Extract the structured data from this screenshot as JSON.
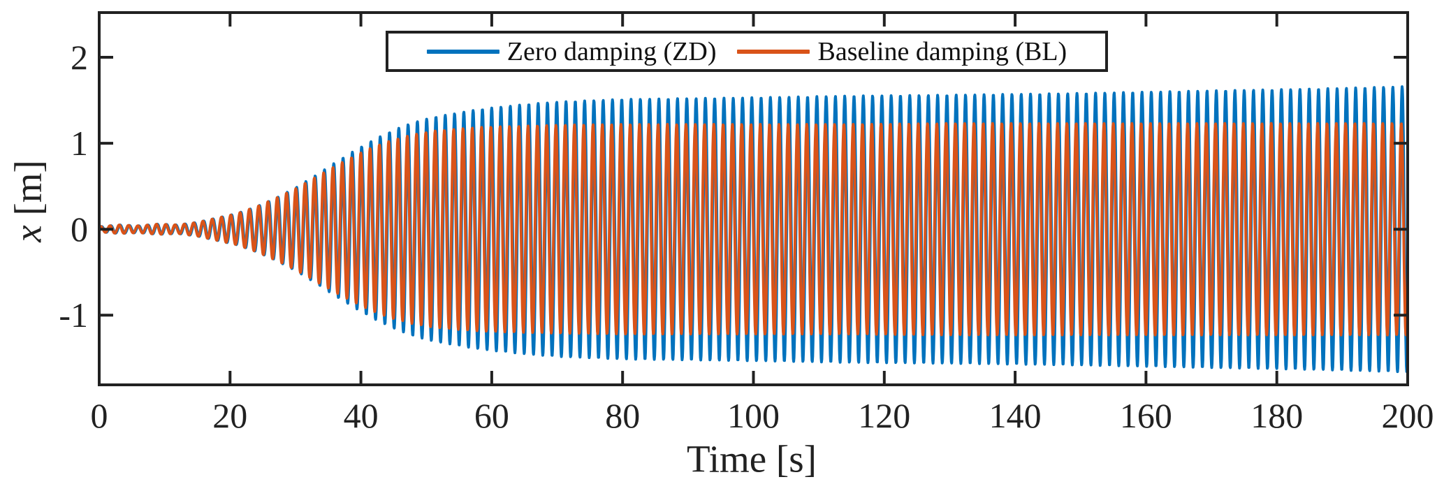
{
  "figure": {
    "background_color": "#ffffff",
    "axis_color": "#212121",
    "title": ""
  },
  "chart_data": {
    "type": "line",
    "title": "",
    "xlabel": "Time [s]",
    "ylabel": "x [m]",
    "ylabel_parts": {
      "var": "x",
      "unit": " [m]"
    },
    "xlim": [
      0,
      200
    ],
    "ylim": [
      -1.81,
      2.52
    ],
    "xticks": [
      0,
      20,
      40,
      60,
      80,
      100,
      120,
      140,
      160,
      180,
      200
    ],
    "yticks": [
      -1,
      0,
      1,
      2
    ],
    "grid": false,
    "box": true,
    "tick_direction": "in",
    "legend": {
      "position": "north-inside-top",
      "entries": [
        "Zero damping (ZD)",
        "Baseline damping (BL)"
      ]
    },
    "carrier": {
      "waveform": "sin",
      "period_s": 1.42
    },
    "signal_model": "x(t) = A(t) * sin(2*pi*t/period_s + phase_rad), A(t) linearly interpolated from envelope control points",
    "series": [
      {
        "name": "Zero damping (ZD)",
        "color": "#0072BD",
        "phase_rad": 0,
        "steady_state_amplitude_m": 1.65,
        "envelope_t_s": [
          0,
          3,
          6,
          9,
          12,
          15,
          18,
          21,
          24,
          27,
          30,
          33,
          36,
          39,
          42,
          45,
          48,
          51,
          54,
          57,
          60,
          65,
          70,
          80,
          90,
          100,
          115,
          130,
          150,
          170,
          185,
          200
        ],
        "envelope_amp_m": [
          0.03,
          0.05,
          0.04,
          0.06,
          0.05,
          0.08,
          0.13,
          0.18,
          0.26,
          0.36,
          0.48,
          0.62,
          0.77,
          0.91,
          1.04,
          1.15,
          1.24,
          1.3,
          1.34,
          1.38,
          1.41,
          1.45,
          1.48,
          1.51,
          1.52,
          1.53,
          1.55,
          1.56,
          1.58,
          1.61,
          1.63,
          1.66
        ]
      },
      {
        "name": "Baseline damping (BL)",
        "color": "#D95319",
        "phase_rad": 0.55,
        "steady_state_amplitude_m": 1.23,
        "envelope_t_s": [
          0,
          3,
          6,
          9,
          12,
          15,
          18,
          21,
          24,
          27,
          30,
          33,
          36,
          39,
          42,
          45,
          48,
          51,
          54,
          57,
          60,
          65,
          70,
          80,
          90,
          100,
          115,
          130,
          150,
          170,
          185,
          200
        ],
        "envelope_amp_m": [
          0.03,
          0.05,
          0.04,
          0.06,
          0.05,
          0.08,
          0.13,
          0.18,
          0.26,
          0.36,
          0.47,
          0.6,
          0.73,
          0.85,
          0.96,
          1.04,
          1.1,
          1.14,
          1.16,
          1.18,
          1.19,
          1.2,
          1.21,
          1.22,
          1.22,
          1.22,
          1.22,
          1.23,
          1.23,
          1.23,
          1.23,
          1.23
        ]
      }
    ]
  }
}
